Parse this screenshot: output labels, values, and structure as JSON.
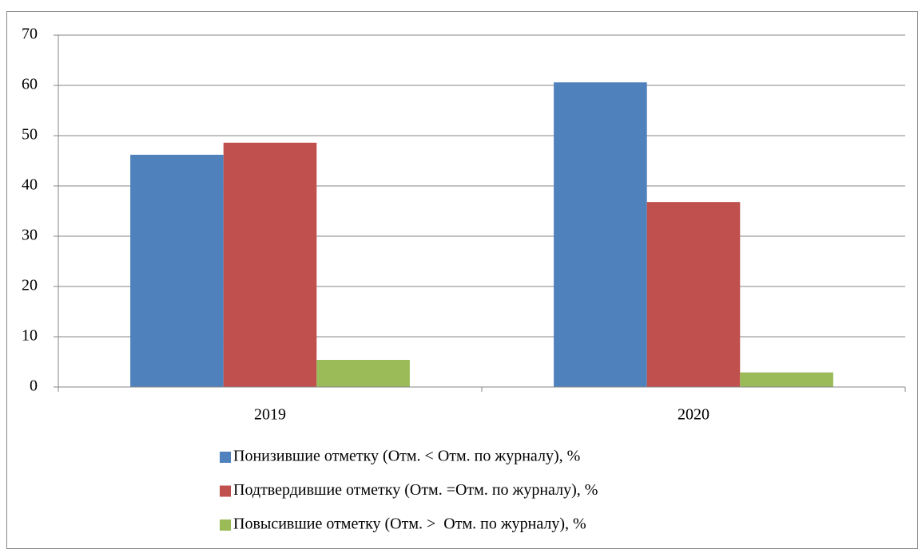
{
  "chart_data": {
    "type": "bar",
    "categories": [
      "2019",
      "2020"
    ],
    "series": [
      {
        "name": "Понизившие отметку (Отм. < Отм. по журналу), %",
        "color": "#4f81bd",
        "values": [
          46.2,
          60.6
        ]
      },
      {
        "name": "Подтвердившие отметку (Отм. =Отм. по журналу), %",
        "color": "#c0504d",
        "values": [
          48.6,
          36.8
        ]
      },
      {
        "name": "Повысившие отметку (Отм. >  Отм. по журналу), %",
        "color": "#9bbb59",
        "values": [
          5.4,
          2.9
        ]
      }
    ],
    "ylim": [
      0,
      70
    ],
    "yticks": [
      0,
      10,
      20,
      30,
      40,
      50,
      60,
      70
    ],
    "grid": true,
    "legend": "bottom"
  }
}
